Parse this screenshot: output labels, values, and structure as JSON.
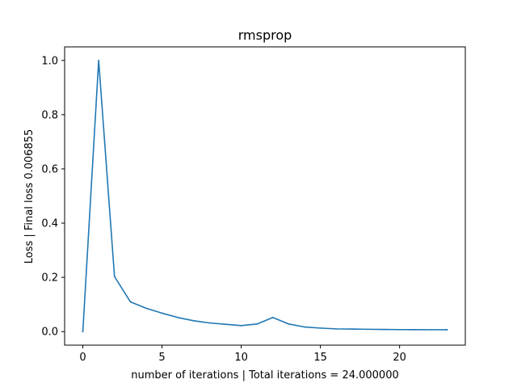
{
  "chart_data": {
    "type": "line",
    "title": "rmsprop",
    "xlabel": "number of iterations | Total iterations = 24.000000",
    "ylabel": "Loss | Final loss 0.006855",
    "xlim": [
      -1.15,
      24.15
    ],
    "ylim": [
      -0.05,
      1.05
    ],
    "xticks": [
      0,
      5,
      10,
      15,
      20
    ],
    "xtick_labels": [
      "0",
      "5",
      "10",
      "15",
      "20"
    ],
    "yticks": [
      0.0,
      0.2,
      0.4,
      0.6,
      0.8,
      1.0
    ],
    "ytick_labels": [
      "0.0",
      "0.2",
      "0.4",
      "0.6",
      "0.8",
      "1.0"
    ],
    "grid": false,
    "series": [
      {
        "color": "#1f77b4",
        "x": [
          0,
          1,
          2,
          3,
          4,
          5,
          6,
          7,
          8,
          9,
          10,
          11,
          12,
          13,
          14,
          15,
          16,
          17,
          18,
          19,
          20,
          21,
          22,
          23
        ],
        "y": [
          0.0,
          1.0,
          0.203,
          0.11,
          0.086,
          0.068,
          0.052,
          0.04,
          0.032,
          0.027,
          0.022,
          0.028,
          0.052,
          0.028,
          0.017,
          0.013,
          0.01,
          0.0093,
          0.0085,
          0.0078,
          0.0074,
          0.0071,
          0.007,
          0.006855
        ]
      }
    ]
  }
}
